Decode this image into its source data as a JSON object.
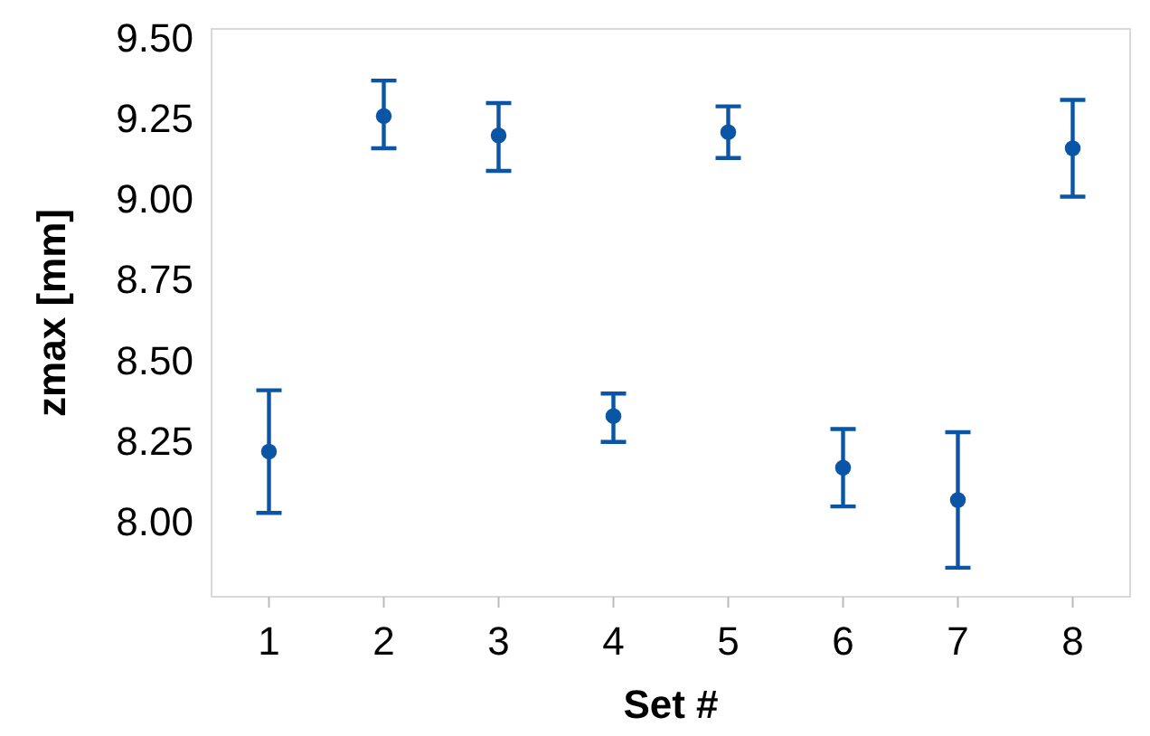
{
  "chart_data": {
    "type": "scatter",
    "xlabel": "Set #",
    "ylabel": "zmax [mm]",
    "x": [
      1,
      2,
      3,
      4,
      5,
      6,
      7,
      8
    ],
    "series": [
      {
        "color": "#0b55a6",
        "values": [
          8.22,
          9.26,
          9.2,
          8.33,
          9.21,
          8.17,
          8.07,
          9.16
        ],
        "errors": [
          [
            8.03,
            8.41
          ],
          [
            9.16,
            9.37
          ],
          [
            9.09,
            9.3
          ],
          [
            8.25,
            8.4
          ],
          [
            9.13,
            9.29
          ],
          [
            8.05,
            8.29
          ],
          [
            7.86,
            8.28
          ],
          [
            9.01,
            9.31
          ]
        ]
      }
    ],
    "xlim": [
      0.5,
      8.5
    ],
    "xticks": [
      1,
      2,
      3,
      4,
      5,
      6,
      7,
      8
    ],
    "ylim": [
      7.77,
      9.53
    ],
    "yticks": [
      {
        "value": 8,
        "label": "8.00"
      },
      {
        "value": 8.25,
        "label": "8.25"
      },
      {
        "value": 8.5,
        "label": "8.50"
      },
      {
        "value": 8.75,
        "label": "8.75"
      },
      {
        "value": 9,
        "label": "9.00"
      },
      {
        "value": 9.25,
        "label": "9.25"
      },
      {
        "value": 9.5,
        "label": "9.50"
      }
    ],
    "marker": "circle",
    "grid": false
  }
}
